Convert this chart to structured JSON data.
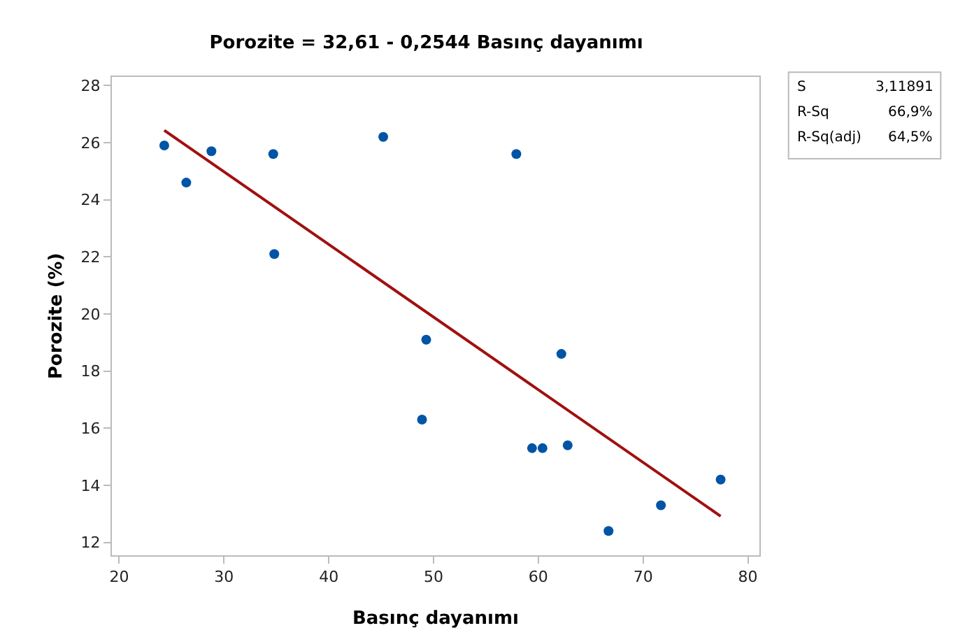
{
  "chart_data": {
    "type": "scatter",
    "title": "Porozite = 32,61 - 0,2544 Basınç dayanımı",
    "xlabel": "Basınç dayanımı",
    "ylabel": "Porozite (%)",
    "series": [
      {
        "color": "#0054a6",
        "x": [
          24.3,
          26.4,
          28.8,
          34.7,
          34.8,
          45.2,
          49.3,
          48.9,
          57.9,
          59.4,
          60.4,
          62.2,
          62.8,
          66.7,
          71.7,
          77.4
        ],
        "values": [
          25.9,
          24.6,
          25.7,
          25.6,
          22.1,
          26.2,
          19.1,
          16.3,
          25.6,
          15.3,
          15.3,
          18.6,
          15.4,
          12.4,
          13.3,
          14.2
        ],
        "marker": "circle"
      },
      {
        "type": "line",
        "color": "#a01010",
        "x": [
          24.3,
          77.4
        ],
        "values": [
          26.43,
          12.92
        ],
        "marker": "none"
      }
    ],
    "xlim": [
      19.3,
      81.1
    ],
    "ylim": [
      11.55,
      28.3
    ],
    "xticks": [
      20,
      30,
      40,
      50,
      60,
      70,
      80
    ],
    "yticks": [
      12,
      14,
      16,
      18,
      20,
      22,
      24,
      26,
      28
    ],
    "grid": false,
    "annotations": [
      "S",
      "3,11891",
      "R-Sq",
      "66,9%",
      "R-Sq(adj)",
      "64,5%"
    ]
  }
}
